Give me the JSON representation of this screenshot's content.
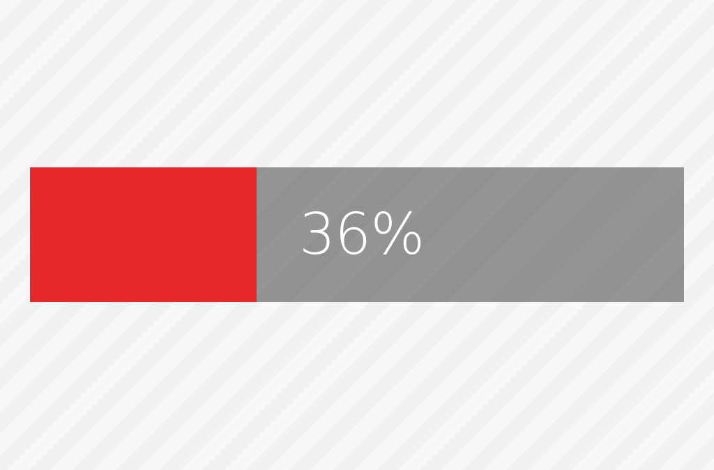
{
  "progress": {
    "value_percent": 36,
    "label": "36%",
    "fill_color": "#e5292b",
    "track_color": "#959595",
    "label_color": "#ffffff"
  }
}
